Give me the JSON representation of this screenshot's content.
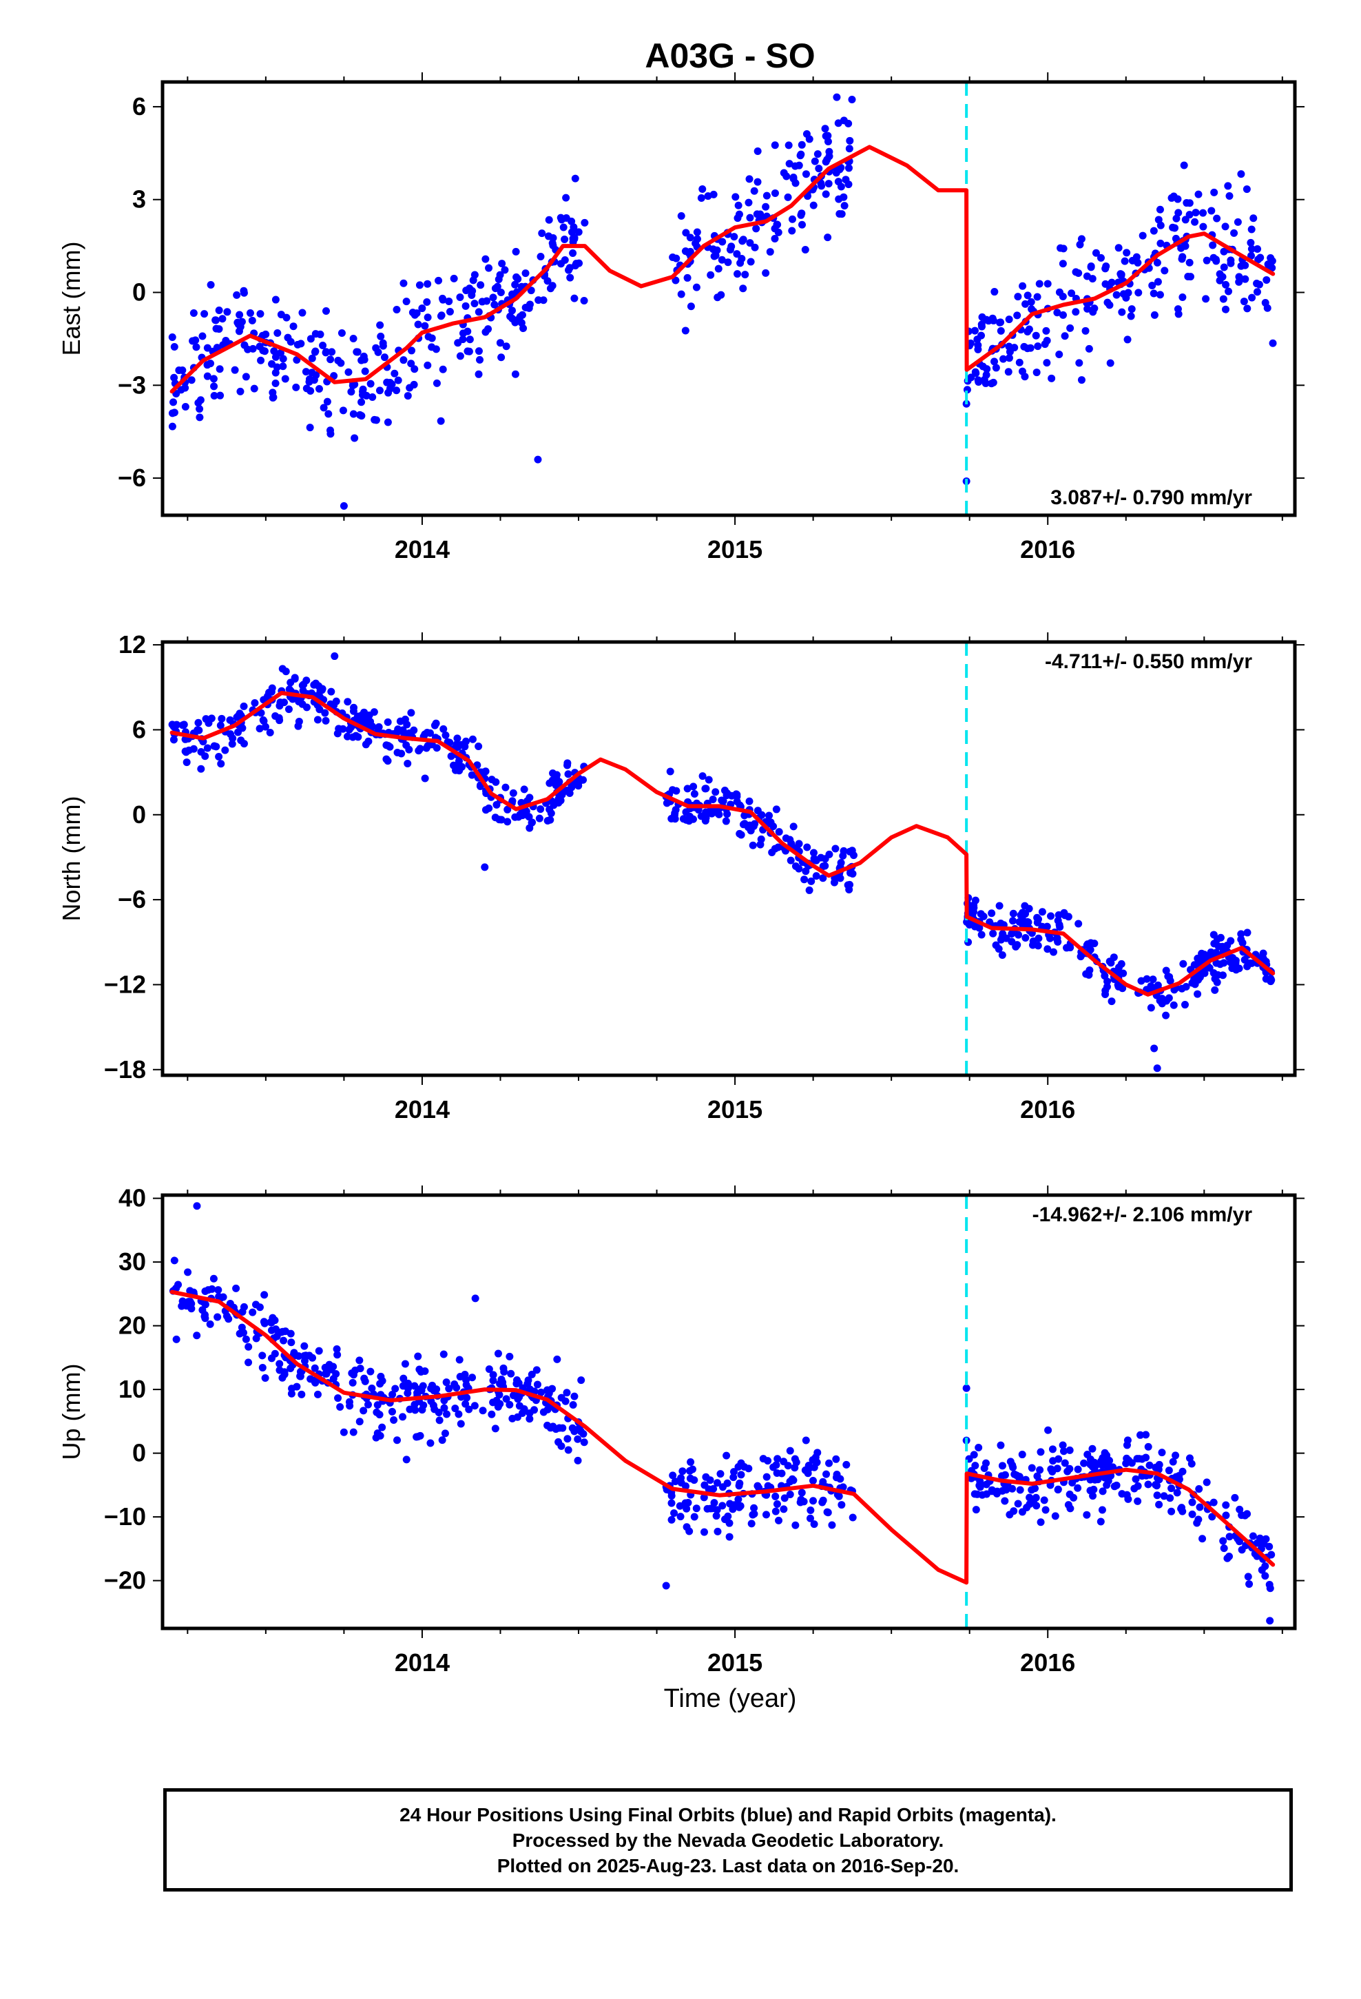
{
  "title": "A03G - SO",
  "xlabel": "Time (year)",
  "footer": {
    "line1": "24 Hour Positions Using Final Orbits (blue) and Rapid Orbits (magenta).",
    "line2": "Processed by the Nevada Geodetic Laboratory.",
    "line3": "Plotted on 2025-Aug-23. Last data on 2016-Sep-20."
  },
  "colors": {
    "points": "#0000ff",
    "model": "#ff0000",
    "offset_line": "#00e5ee"
  },
  "chart_data": [
    {
      "type": "scatter",
      "ylabel": "East (mm)",
      "rate_label": "3.087+/- 0.790 mm/yr",
      "xlim": [
        2013.17,
        2016.79
      ],
      "ylim": [
        -7.2,
        6.8
      ],
      "yticks": [
        -6,
        -3,
        0,
        3,
        6
      ],
      "xticks": [
        2014,
        2015,
        2016
      ],
      "offset_epoch": 2015.74,
      "segments": [
        [
          2013.2,
          2013.52
        ],
        [
          2013.52,
          2014.52
        ],
        [
          2014.78,
          2015.38
        ],
        [
          2015.74,
          2016.72
        ]
      ],
      "model": [
        [
          2013.2,
          -3.2
        ],
        [
          2013.3,
          -2.2
        ],
        [
          2013.45,
          -1.4
        ],
        [
          2013.6,
          -2.0
        ],
        [
          2013.72,
          -2.9
        ],
        [
          2013.82,
          -2.8
        ],
        [
          2013.95,
          -1.8
        ],
        [
          2014.0,
          -1.3
        ],
        [
          2014.1,
          -1.0
        ],
        [
          2014.2,
          -0.8
        ],
        [
          2014.3,
          -0.2
        ],
        [
          2014.4,
          0.8
        ],
        [
          2014.45,
          1.5
        ],
        [
          2014.52,
          1.5
        ],
        [
          2014.6,
          0.7
        ],
        [
          2014.7,
          0.2
        ],
        [
          2014.8,
          0.5
        ],
        [
          2014.9,
          1.5
        ],
        [
          2015.0,
          2.1
        ],
        [
          2015.1,
          2.3
        ],
        [
          2015.18,
          2.8
        ],
        [
          2015.3,
          4.0
        ],
        [
          2015.43,
          4.7
        ],
        [
          2015.55,
          4.1
        ],
        [
          2015.65,
          3.3
        ],
        [
          2015.74,
          3.3
        ],
        [
          2015.741,
          -2.5
        ],
        [
          2015.85,
          -1.7
        ],
        [
          2015.95,
          -0.7
        ],
        [
          2016.05,
          -0.4
        ],
        [
          2016.15,
          -0.2
        ],
        [
          2016.25,
          0.3
        ],
        [
          2016.35,
          1.2
        ],
        [
          2016.45,
          1.8
        ],
        [
          2016.5,
          1.9
        ],
        [
          2016.6,
          1.3
        ],
        [
          2016.72,
          0.6
        ]
      ],
      "noise": 1.4,
      "outliers": [
        [
          2013.75,
          -6.9
        ],
        [
          2015.74,
          -6.1
        ],
        [
          2015.74,
          -3.6
        ],
        [
          2014.37,
          -5.4
        ]
      ]
    },
    {
      "type": "scatter",
      "ylabel": "North (mm)",
      "rate_label": "-4.711+/- 0.550 mm/yr",
      "xlim": [
        2013.17,
        2016.79
      ],
      "ylim": [
        -18.4,
        12.2
      ],
      "yticks": [
        -18,
        -12,
        -6,
        0,
        6,
        12
      ],
      "xticks": [
        2014,
        2015,
        2016
      ],
      "offset_epoch": 2015.74,
      "segments": [
        [
          2013.2,
          2014.52
        ],
        [
          2014.78,
          2015.38
        ],
        [
          2015.74,
          2016.72
        ]
      ],
      "model": [
        [
          2013.2,
          5.8
        ],
        [
          2013.3,
          5.4
        ],
        [
          2013.4,
          6.3
        ],
        [
          2013.55,
          8.6
        ],
        [
          2013.65,
          8.3
        ],
        [
          2013.75,
          6.8
        ],
        [
          2013.85,
          5.7
        ],
        [
          2013.95,
          5.4
        ],
        [
          2014.05,
          5.2
        ],
        [
          2014.15,
          3.8
        ],
        [
          2014.22,
          1.5
        ],
        [
          2014.3,
          0.4
        ],
        [
          2014.4,
          1.1
        ],
        [
          2014.5,
          2.9
        ],
        [
          2014.57,
          3.9
        ],
        [
          2014.65,
          3.2
        ],
        [
          2014.75,
          1.6
        ],
        [
          2014.85,
          0.6
        ],
        [
          2014.95,
          0.6
        ],
        [
          2015.05,
          0.2
        ],
        [
          2015.15,
          -2.0
        ],
        [
          2015.25,
          -3.6
        ],
        [
          2015.3,
          -4.3
        ],
        [
          2015.4,
          -3.4
        ],
        [
          2015.5,
          -1.6
        ],
        [
          2015.58,
          -0.8
        ],
        [
          2015.68,
          -1.6
        ],
        [
          2015.74,
          -2.8
        ],
        [
          2015.741,
          -7.2
        ],
        [
          2015.82,
          -8.0
        ],
        [
          2015.95,
          -8.1
        ],
        [
          2016.05,
          -8.4
        ],
        [
          2016.15,
          -10.3
        ],
        [
          2016.25,
          -12.0
        ],
        [
          2016.32,
          -12.7
        ],
        [
          2016.42,
          -11.9
        ],
        [
          2016.52,
          -10.3
        ],
        [
          2016.62,
          -9.4
        ],
        [
          2016.72,
          -11.2
        ]
      ],
      "noise": 1.2,
      "outliers": [
        [
          2016.35,
          -17.9
        ],
        [
          2016.34,
          -16.5
        ],
        [
          2013.72,
          11.2
        ],
        [
          2014.2,
          -3.7
        ]
      ]
    },
    {
      "type": "scatter",
      "ylabel": "Up (mm)",
      "rate_label": "-14.962+/- 2.106 mm/yr",
      "xlim": [
        2013.17,
        2016.79
      ],
      "ylim": [
        -27.5,
        40.5
      ],
      "yticks": [
        -20,
        -10,
        0,
        10,
        20,
        30,
        40
      ],
      "xticks": [
        2014,
        2015,
        2016
      ],
      "offset_epoch": 2015.74,
      "segments": [
        [
          2013.2,
          2014.52
        ],
        [
          2014.78,
          2015.38
        ],
        [
          2015.74,
          2016.72
        ]
      ],
      "model": [
        [
          2013.2,
          25.3
        ],
        [
          2013.35,
          23.8
        ],
        [
          2013.5,
          18.5
        ],
        [
          2013.6,
          14.0
        ],
        [
          2013.75,
          9.5
        ],
        [
          2013.9,
          8.3
        ],
        [
          2014.05,
          8.9
        ],
        [
          2014.2,
          10.0
        ],
        [
          2014.3,
          9.9
        ],
        [
          2014.4,
          8.4
        ],
        [
          2014.52,
          4.2
        ],
        [
          2014.65,
          -1.2
        ],
        [
          2014.8,
          -5.6
        ],
        [
          2014.95,
          -6.6
        ],
        [
          2015.1,
          -6.0
        ],
        [
          2015.25,
          -5.1
        ],
        [
          2015.38,
          -6.4
        ],
        [
          2015.5,
          -12.0
        ],
        [
          2015.65,
          -18.3
        ],
        [
          2015.74,
          -20.3
        ],
        [
          2015.741,
          -3.2
        ],
        [
          2015.85,
          -4.3
        ],
        [
          2015.95,
          -4.8
        ],
        [
          2016.1,
          -3.7
        ],
        [
          2016.25,
          -2.6
        ],
        [
          2016.35,
          -3.2
        ],
        [
          2016.45,
          -5.7
        ],
        [
          2016.55,
          -10.0
        ],
        [
          2016.65,
          -14.4
        ],
        [
          2016.72,
          -17.5
        ]
      ],
      "noise": 4.0,
      "outliers": [
        [
          2013.28,
          38.8
        ],
        [
          2013.95,
          -1.0
        ],
        [
          2014.17,
          24.3
        ],
        [
          2014.78,
          -20.8
        ],
        [
          2015.74,
          10.2
        ],
        [
          2015.74,
          2.0
        ],
        [
          2016.71,
          -26.3
        ]
      ]
    }
  ]
}
